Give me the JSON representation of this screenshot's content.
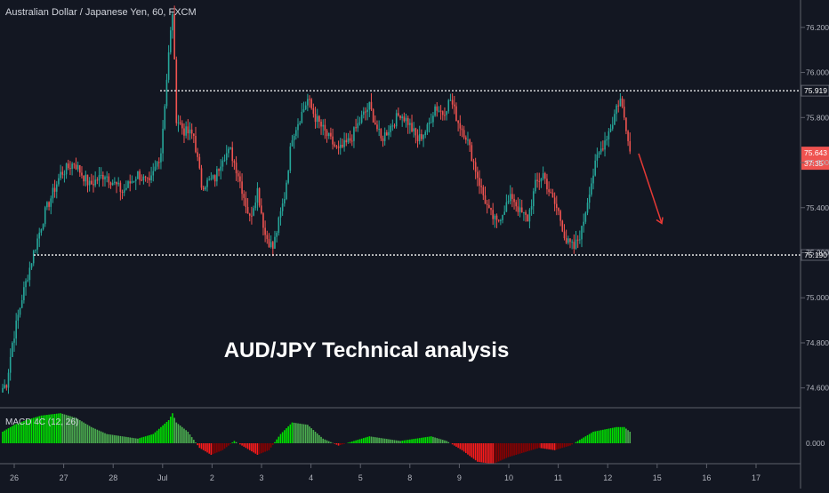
{
  "symbol_title": "Australian Dollar / Japanese Yen, 60, FXCM",
  "overlay_title": "AUD/JPY Technical analysis",
  "macd_title": "MACD 4C (12, 26)",
  "colors": {
    "background": "#131722",
    "up": "#26a69a",
    "down": "#ef5350",
    "macd_up_strong": "#00e000",
    "macd_up_weak": "#4caf50",
    "macd_down_strong": "#ff1a1a",
    "macd_down_weak": "#8b0000",
    "level_line": "#ffffff",
    "arrow": "#e53935",
    "current_price_bg": "#ef5350"
  },
  "chart_data": [
    {
      "type": "candlestick",
      "x_labels": [
        "26",
        "27",
        "28",
        "Jul",
        "2",
        "3",
        "4",
        "5",
        "8",
        "9",
        "10",
        "11",
        "12",
        "15",
        "16",
        "17"
      ],
      "y_ticks": [
        "74.600",
        "74.800",
        "75.000",
        "75.200",
        "75.400",
        "75.600",
        "75.800",
        "76.000",
        "76.200"
      ],
      "ylim": [
        74.52,
        76.29
      ],
      "resistance": {
        "value": 75.919,
        "label": "75.919"
      },
      "support": {
        "value": 75.19,
        "label": "75.190"
      },
      "current_price": {
        "value": 75.643,
        "label": "75.643",
        "countdown": "37:35"
      },
      "projected_move": {
        "from": 75.64,
        "to": 75.33,
        "direction": "down"
      },
      "close_path": [
        [
          0,
          74.6
        ],
        [
          2,
          74.62
        ],
        [
          5,
          74.8
        ],
        [
          10,
          75.0
        ],
        [
          16,
          75.2
        ],
        [
          22,
          75.38
        ],
        [
          30,
          75.55
        ],
        [
          37,
          75.6
        ],
        [
          45,
          75.5
        ],
        [
          53,
          75.55
        ],
        [
          62,
          75.47
        ],
        [
          70,
          75.55
        ],
        [
          76,
          75.5
        ],
        [
          82,
          75.65
        ],
        [
          86,
          76.08
        ],
        [
          88,
          76.27
        ],
        [
          90,
          75.8
        ],
        [
          94,
          75.74
        ],
        [
          99,
          75.72
        ],
        [
          103,
          75.5
        ],
        [
          110,
          75.53
        ],
        [
          114,
          75.63
        ],
        [
          118,
          75.65
        ],
        [
          122,
          75.55
        ],
        [
          128,
          75.35
        ],
        [
          132,
          75.48
        ],
        [
          136,
          75.28
        ],
        [
          140,
          75.22
        ],
        [
          146,
          75.45
        ],
        [
          150,
          75.72
        ],
        [
          155,
          75.82
        ],
        [
          158,
          75.88
        ],
        [
          162,
          75.8
        ],
        [
          168,
          75.72
        ],
        [
          174,
          75.65
        ],
        [
          180,
          75.7
        ],
        [
          186,
          75.8
        ],
        [
          190,
          75.85
        ],
        [
          196,
          75.7
        ],
        [
          200,
          75.75
        ],
        [
          206,
          75.82
        ],
        [
          210,
          75.78
        ],
        [
          215,
          75.7
        ],
        [
          220,
          75.75
        ],
        [
          224,
          75.85
        ],
        [
          228,
          75.82
        ],
        [
          232,
          75.88
        ],
        [
          236,
          75.78
        ],
        [
          240,
          75.72
        ],
        [
          244,
          75.6
        ],
        [
          248,
          75.48
        ],
        [
          252,
          75.38
        ],
        [
          256,
          75.33
        ],
        [
          260,
          75.4
        ],
        [
          264,
          75.45
        ],
        [
          268,
          75.38
        ],
        [
          272,
          75.35
        ],
        [
          276,
          75.5
        ],
        [
          280,
          75.55
        ],
        [
          284,
          75.45
        ],
        [
          288,
          75.38
        ],
        [
          292,
          75.25
        ],
        [
          296,
          75.22
        ],
        [
          300,
          75.3
        ],
        [
          304,
          75.48
        ],
        [
          308,
          75.62
        ],
        [
          312,
          75.7
        ],
        [
          316,
          75.78
        ],
        [
          318,
          75.85
        ],
        [
          320,
          75.88
        ],
        [
          322,
          75.8
        ],
        [
          324,
          75.72
        ],
        [
          325,
          75.65
        ]
      ]
    },
    {
      "type": "bar",
      "title": "MACD 4C (12, 26)",
      "y_ticks": [
        "0.000"
      ],
      "ylim": [
        -0.11,
        0.15
      ],
      "x": [
        0,
        6,
        12,
        20,
        30,
        38,
        46,
        54,
        62,
        70,
        78,
        86,
        88,
        90,
        96,
        102,
        108,
        114,
        120,
        126,
        132,
        138,
        144,
        150,
        158,
        166,
        174,
        182,
        190,
        198,
        206,
        214,
        222,
        230,
        238,
        246,
        254,
        262,
        270,
        278,
        286,
        294,
        300,
        306,
        312,
        318,
        322,
        325
      ],
      "values": [
        0.05,
        0.08,
        0.1,
        0.12,
        0.13,
        0.11,
        0.07,
        0.04,
        0.03,
        0.02,
        0.04,
        0.1,
        0.13,
        0.09,
        0.05,
        -0.02,
        -0.05,
        -0.03,
        0.01,
        -0.02,
        -0.05,
        -0.03,
        0.04,
        0.09,
        0.08,
        0.02,
        -0.01,
        0.01,
        0.03,
        0.02,
        0.01,
        0.02,
        0.03,
        0.01,
        -0.03,
        -0.08,
        -0.09,
        -0.06,
        -0.04,
        -0.02,
        -0.03,
        -0.01,
        0.02,
        0.05,
        0.06,
        0.07,
        0.07,
        0.05
      ]
    }
  ]
}
